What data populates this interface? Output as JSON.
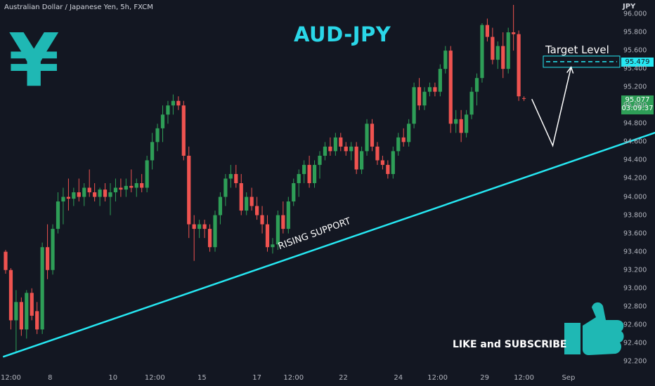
{
  "header": {
    "symbol_title": "Australian Dollar / Japanese Yen, 5h, FXCM",
    "chart_title": "AUD-JPY",
    "currency": "JPY"
  },
  "annotations": {
    "yen_symbol": "¥",
    "target_label": "Target Level",
    "support_label": "RISING SUPPORT",
    "like_label": "LIKE and SUBSCRIBE",
    "icons": [
      "yen-icon",
      "thumbs-up-icon"
    ]
  },
  "price_tags": {
    "target": "95.479",
    "last_price": "95.077",
    "countdown": "03:09:37"
  },
  "colors": {
    "background": "#131722",
    "up": "#2e9e57",
    "down": "#ef5350",
    "support": "#26e7f2",
    "accent": "#1fb8b4"
  },
  "chart_data": {
    "type": "candlestick",
    "y_axis": {
      "ticks": [
        "92.200",
        "92.400",
        "92.600",
        "92.800",
        "93.000",
        "93.200",
        "93.400",
        "93.600",
        "93.800",
        "94.000",
        "94.200",
        "94.400",
        "94.600",
        "94.800",
        "95.000",
        "95.200",
        "95.400",
        "95.600",
        "95.800",
        "96.000"
      ],
      "range": [
        92.15,
        96.05
      ]
    },
    "x_axis": {
      "ticks": [
        "12:00",
        "8",
        "10",
        "12:00",
        "15",
        "17",
        "12:00",
        "22",
        "24",
        "12:00",
        "29",
        "12:00",
        "Sep"
      ]
    },
    "candles": [
      {
        "o": 93.4,
        "h": 93.42,
        "l": 93.16,
        "c": 93.2
      },
      {
        "o": 93.2,
        "h": 93.22,
        "l": 92.55,
        "c": 92.65
      },
      {
        "o": 92.65,
        "h": 92.98,
        "l": 92.3,
        "c": 92.85
      },
      {
        "o": 92.85,
        "h": 92.9,
        "l": 92.48,
        "c": 92.55
      },
      {
        "o": 92.55,
        "h": 92.98,
        "l": 92.45,
        "c": 92.95
      },
      {
        "o": 92.95,
        "h": 93.0,
        "l": 92.65,
        "c": 92.7
      },
      {
        "o": 92.75,
        "h": 92.85,
        "l": 92.5,
        "c": 92.55
      },
      {
        "o": 92.55,
        "h": 93.5,
        "l": 92.5,
        "c": 93.45
      },
      {
        "o": 93.45,
        "h": 93.7,
        "l": 93.1,
        "c": 93.2
      },
      {
        "o": 93.2,
        "h": 93.7,
        "l": 93.15,
        "c": 93.65
      },
      {
        "o": 93.65,
        "h": 94.05,
        "l": 93.6,
        "c": 93.95
      },
      {
        "o": 93.95,
        "h": 94.1,
        "l": 93.7,
        "c": 94.0
      },
      {
        "o": 94.0,
        "h": 94.2,
        "l": 93.85,
        "c": 93.98
      },
      {
        "o": 93.98,
        "h": 94.1,
        "l": 93.9,
        "c": 94.05
      },
      {
        "o": 94.05,
        "h": 94.2,
        "l": 93.95,
        "c": 94.0
      },
      {
        "o": 94.0,
        "h": 94.15,
        "l": 93.9,
        "c": 94.1
      },
      {
        "o": 94.1,
        "h": 94.3,
        "l": 94.0,
        "c": 94.05
      },
      {
        "o": 94.05,
        "h": 94.15,
        "l": 93.95,
        "c": 94.0
      },
      {
        "o": 94.0,
        "h": 94.1,
        "l": 93.9,
        "c": 94.08
      },
      {
        "o": 94.08,
        "h": 94.15,
        "l": 93.95,
        "c": 94.0
      },
      {
        "o": 94.0,
        "h": 94.15,
        "l": 93.8,
        "c": 94.05
      },
      {
        "o": 94.05,
        "h": 94.2,
        "l": 93.95,
        "c": 94.1
      },
      {
        "o": 94.1,
        "h": 94.2,
        "l": 94.0,
        "c": 94.08
      },
      {
        "o": 94.08,
        "h": 94.2,
        "l": 94.0,
        "c": 94.12
      },
      {
        "o": 94.12,
        "h": 94.3,
        "l": 94.05,
        "c": 94.1
      },
      {
        "o": 94.1,
        "h": 94.2,
        "l": 94.0,
        "c": 94.15
      },
      {
        "o": 94.15,
        "h": 94.25,
        "l": 94.05,
        "c": 94.1
      },
      {
        "o": 94.1,
        "h": 94.45,
        "l": 94.05,
        "c": 94.4
      },
      {
        "o": 94.4,
        "h": 94.7,
        "l": 94.3,
        "c": 94.6
      },
      {
        "o": 94.6,
        "h": 94.8,
        "l": 94.5,
        "c": 94.75
      },
      {
        "o": 94.75,
        "h": 95.0,
        "l": 94.6,
        "c": 94.9
      },
      {
        "o": 94.9,
        "h": 95.05,
        "l": 94.8,
        "c": 95.0
      },
      {
        "o": 95.0,
        "h": 95.12,
        "l": 94.9,
        "c": 95.05
      },
      {
        "o": 95.05,
        "h": 95.1,
        "l": 94.95,
        "c": 95.0
      },
      {
        "o": 95.0,
        "h": 95.05,
        "l": 94.4,
        "c": 94.45
      },
      {
        "o": 94.45,
        "h": 94.55,
        "l": 93.55,
        "c": 93.7
      },
      {
        "o": 93.7,
        "h": 93.8,
        "l": 93.3,
        "c": 93.65
      },
      {
        "o": 93.65,
        "h": 93.75,
        "l": 93.55,
        "c": 93.7
      },
      {
        "o": 93.7,
        "h": 93.75,
        "l": 93.55,
        "c": 93.65
      },
      {
        "o": 93.65,
        "h": 93.7,
        "l": 93.4,
        "c": 93.45
      },
      {
        "o": 93.45,
        "h": 93.85,
        "l": 93.4,
        "c": 93.8
      },
      {
        "o": 93.8,
        "h": 94.05,
        "l": 93.7,
        "c": 94.0
      },
      {
        "o": 94.0,
        "h": 94.25,
        "l": 93.9,
        "c": 94.2
      },
      {
        "o": 94.2,
        "h": 94.35,
        "l": 94.1,
        "c": 94.25
      },
      {
        "o": 94.25,
        "h": 94.35,
        "l": 94.1,
        "c": 94.15
      },
      {
        "o": 94.15,
        "h": 94.25,
        "l": 93.8,
        "c": 93.85
      },
      {
        "o": 93.85,
        "h": 94.05,
        "l": 93.8,
        "c": 94.0
      },
      {
        "o": 94.0,
        "h": 94.1,
        "l": 93.85,
        "c": 93.9
      },
      {
        "o": 93.9,
        "h": 94.0,
        "l": 93.75,
        "c": 93.8
      },
      {
        "o": 93.8,
        "h": 93.9,
        "l": 93.6,
        "c": 93.7
      },
      {
        "o": 93.7,
        "h": 93.8,
        "l": 93.4,
        "c": 93.45
      },
      {
        "o": 93.45,
        "h": 93.55,
        "l": 93.38,
        "c": 93.48
      },
      {
        "o": 93.48,
        "h": 93.85,
        "l": 93.42,
        "c": 93.8
      },
      {
        "o": 93.8,
        "h": 93.95,
        "l": 93.6,
        "c": 93.65
      },
      {
        "o": 93.65,
        "h": 94.0,
        "l": 93.6,
        "c": 93.95
      },
      {
        "o": 93.95,
        "h": 94.2,
        "l": 93.9,
        "c": 94.15
      },
      {
        "o": 94.15,
        "h": 94.3,
        "l": 94.0,
        "c": 94.25
      },
      {
        "o": 94.25,
        "h": 94.4,
        "l": 94.15,
        "c": 94.35
      },
      {
        "o": 94.35,
        "h": 94.45,
        "l": 94.1,
        "c": 94.15
      },
      {
        "o": 94.15,
        "h": 94.4,
        "l": 94.1,
        "c": 94.35
      },
      {
        "o": 94.35,
        "h": 94.5,
        "l": 94.2,
        "c": 94.45
      },
      {
        "o": 94.45,
        "h": 94.6,
        "l": 94.4,
        "c": 94.55
      },
      {
        "o": 94.55,
        "h": 94.65,
        "l": 94.45,
        "c": 94.5
      },
      {
        "o": 94.5,
        "h": 94.7,
        "l": 94.45,
        "c": 94.65
      },
      {
        "o": 94.65,
        "h": 94.7,
        "l": 94.5,
        "c": 94.55
      },
      {
        "o": 94.55,
        "h": 94.6,
        "l": 94.45,
        "c": 94.5
      },
      {
        "o": 94.5,
        "h": 94.6,
        "l": 94.4,
        "c": 94.55
      },
      {
        "o": 94.55,
        "h": 94.6,
        "l": 94.25,
        "c": 94.3
      },
      {
        "o": 94.3,
        "h": 94.55,
        "l": 94.25,
        "c": 94.5
      },
      {
        "o": 94.5,
        "h": 94.85,
        "l": 94.45,
        "c": 94.8
      },
      {
        "o": 94.8,
        "h": 94.85,
        "l": 94.5,
        "c": 94.55
      },
      {
        "o": 94.55,
        "h": 94.6,
        "l": 94.35,
        "c": 94.4
      },
      {
        "o": 94.4,
        "h": 94.45,
        "l": 94.3,
        "c": 94.35
      },
      {
        "o": 94.35,
        "h": 94.4,
        "l": 94.2,
        "c": 94.25
      },
      {
        "o": 94.25,
        "h": 94.55,
        "l": 94.2,
        "c": 94.5
      },
      {
        "o": 94.5,
        "h": 94.7,
        "l": 94.45,
        "c": 94.65
      },
      {
        "o": 94.65,
        "h": 94.75,
        "l": 94.55,
        "c": 94.6
      },
      {
        "o": 94.6,
        "h": 94.85,
        "l": 94.55,
        "c": 94.8
      },
      {
        "o": 94.8,
        "h": 95.25,
        "l": 94.75,
        "c": 95.2
      },
      {
        "o": 95.2,
        "h": 95.3,
        "l": 94.95,
        "c": 95.0
      },
      {
        "o": 95.0,
        "h": 95.2,
        "l": 94.95,
        "c": 95.15
      },
      {
        "o": 95.15,
        "h": 95.25,
        "l": 95.1,
        "c": 95.2
      },
      {
        "o": 95.2,
        "h": 95.25,
        "l": 95.1,
        "c": 95.15
      },
      {
        "o": 95.15,
        "h": 95.45,
        "l": 95.1,
        "c": 95.4
      },
      {
        "o": 95.4,
        "h": 95.65,
        "l": 95.35,
        "c": 95.6
      },
      {
        "o": 95.6,
        "h": 95.65,
        "l": 94.7,
        "c": 94.8
      },
      {
        "o": 94.8,
        "h": 94.95,
        "l": 94.7,
        "c": 94.85
      },
      {
        "o": 94.85,
        "h": 94.95,
        "l": 94.6,
        "c": 94.7
      },
      {
        "o": 94.7,
        "h": 94.95,
        "l": 94.65,
        "c": 94.9
      },
      {
        "o": 94.9,
        "h": 95.2,
        "l": 94.85,
        "c": 95.15
      },
      {
        "o": 95.15,
        "h": 95.35,
        "l": 95.0,
        "c": 95.3
      },
      {
        "o": 95.3,
        "h": 95.9,
        "l": 95.25,
        "c": 95.88
      },
      {
        "o": 95.88,
        "h": 95.95,
        "l": 95.7,
        "c": 95.75
      },
      {
        "o": 95.75,
        "h": 95.85,
        "l": 95.45,
        "c": 95.5
      },
      {
        "o": 95.5,
        "h": 95.7,
        "l": 95.4,
        "c": 95.65
      },
      {
        "o": 95.65,
        "h": 95.8,
        "l": 95.3,
        "c": 95.4
      },
      {
        "o": 95.4,
        "h": 95.85,
        "l": 95.35,
        "c": 95.8
      },
      {
        "o": 95.8,
        "h": 96.1,
        "l": 95.6,
        "c": 95.78
      },
      {
        "o": 95.78,
        "h": 95.82,
        "l": 95.05,
        "c": 95.1
      },
      {
        "o": 95.08,
        "h": 95.1,
        "l": 95.05,
        "c": 95.077
      }
    ],
    "target_level": 95.479,
    "last_price": 95.077,
    "rising_support": {
      "start": {
        "index": -0.5,
        "price": 92.25
      },
      "end": {
        "index": 128,
        "price": 94.78
      }
    },
    "projection_path": [
      {
        "index": 100.5,
        "price": 95.07
      },
      {
        "index": 104.5,
        "price": 94.56
      },
      {
        "index": 108,
        "price": 95.42
      }
    ],
    "grid": false,
    "legend": "none"
  }
}
